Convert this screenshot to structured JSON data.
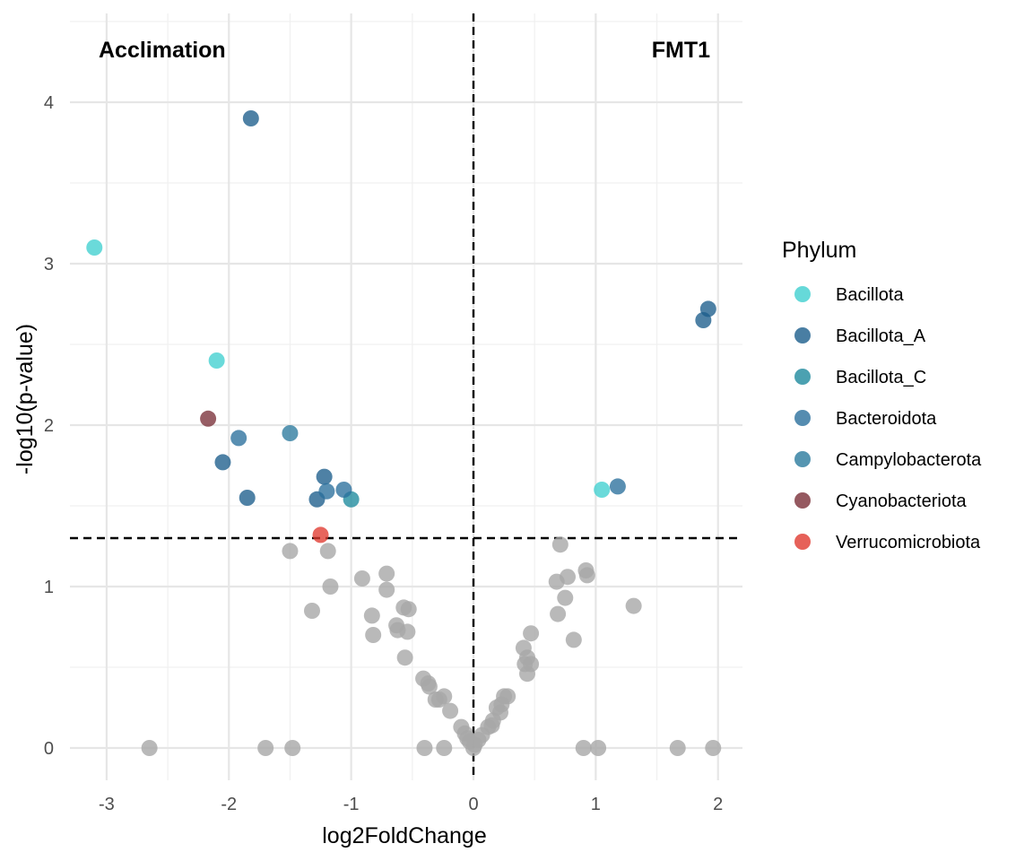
{
  "chart_data": {
    "type": "scatter",
    "xlabel": "log2FoldChange",
    "ylabel": "-log10(p-value)",
    "xlim": [
      -3.3,
      2.2
    ],
    "ylim": [
      -0.2,
      4.55
    ],
    "x_ticks": [
      -3,
      -2,
      -1,
      0,
      1,
      2
    ],
    "y_ticks": [
      0,
      1,
      2,
      3,
      4
    ],
    "grid": true,
    "reference_lines": {
      "vertical_x": 0,
      "horizontal_y": 1.3
    },
    "annotations": [
      {
        "text": "Acclimation",
        "position": "top-left"
      },
      {
        "text": "FMT1",
        "position": "top-right"
      }
    ],
    "legend": {
      "title": "Phylum",
      "placement": "right",
      "entries": [
        {
          "name": "Bacillota",
          "color": "#40D0D0"
        },
        {
          "name": "Bacillota_A",
          "color": "#1C5E8C"
        },
        {
          "name": "Bacillota_C",
          "color": "#1E8A9E"
        },
        {
          "name": "Bacteroidota",
          "color": "#2A6F9C"
        },
        {
          "name": "Campylobacterota",
          "color": "#2B7A9E"
        },
        {
          "name": "Cyanobacteriota",
          "color": "#7A3038"
        },
        {
          "name": "Verrucomicrobiota",
          "color": "#E03A30"
        }
      ]
    },
    "non_significant_color": "#A8A8A8",
    "series": [
      {
        "name": "Bacillota",
        "points": [
          [
            -3.1,
            3.1
          ],
          [
            -2.1,
            2.4
          ],
          [
            1.05,
            1.6
          ]
        ]
      },
      {
        "name": "Bacillota_A",
        "points": [
          [
            -1.82,
            3.9
          ],
          [
            -2.05,
            1.77
          ],
          [
            -1.85,
            1.55
          ],
          [
            -1.22,
            1.68
          ],
          [
            -1.28,
            1.54
          ],
          [
            1.88,
            2.65
          ],
          [
            1.92,
            2.72
          ]
        ]
      },
      {
        "name": "Bacillota_C",
        "points": [
          [
            -1.0,
            1.54
          ]
        ]
      },
      {
        "name": "Bacteroidota",
        "points": [
          [
            -1.92,
            1.92
          ],
          [
            -1.2,
            1.59
          ],
          [
            -1.06,
            1.6
          ],
          [
            1.18,
            1.62
          ]
        ]
      },
      {
        "name": "Campylobacterota",
        "points": [
          [
            -1.5,
            1.95
          ]
        ]
      },
      {
        "name": "Cyanobacteriota",
        "points": [
          [
            -2.17,
            2.04
          ]
        ]
      },
      {
        "name": "Verrucomicrobiota",
        "points": [
          [
            -1.25,
            1.32
          ]
        ]
      },
      {
        "name": "",
        "points": [
          [
            -2.65,
            0
          ],
          [
            -1.7,
            0
          ],
          [
            -1.48,
            0
          ],
          [
            -0.4,
            0
          ],
          [
            -0.24,
            0
          ],
          [
            0.0,
            0
          ],
          [
            0.9,
            0
          ],
          [
            1.02,
            0
          ],
          [
            1.67,
            0
          ],
          [
            1.96,
            0
          ],
          [
            -1.5,
            1.22
          ],
          [
            -1.19,
            1.22
          ],
          [
            -1.17,
            1.0
          ],
          [
            -1.32,
            0.85
          ],
          [
            -0.91,
            1.05
          ],
          [
            -0.71,
            1.08
          ],
          [
            -0.71,
            0.98
          ],
          [
            -0.83,
            0.82
          ],
          [
            -0.82,
            0.7
          ],
          [
            -0.57,
            0.87
          ],
          [
            -0.53,
            0.86
          ],
          [
            -0.63,
            0.76
          ],
          [
            -0.62,
            0.73
          ],
          [
            -0.54,
            0.72
          ],
          [
            -0.56,
            0.56
          ],
          [
            -0.41,
            0.43
          ],
          [
            -0.37,
            0.4
          ],
          [
            -0.36,
            0.38
          ],
          [
            -0.31,
            0.3
          ],
          [
            -0.28,
            0.3
          ],
          [
            -0.24,
            0.32
          ],
          [
            -0.19,
            0.23
          ],
          [
            -0.1,
            0.13
          ],
          [
            -0.07,
            0.09
          ],
          [
            -0.05,
            0.06
          ],
          [
            -0.03,
            0.04
          ],
          [
            0.01,
            0.02
          ],
          [
            0.04,
            0.05
          ],
          [
            0.07,
            0.08
          ],
          [
            0.12,
            0.13
          ],
          [
            0.16,
            0.17
          ],
          [
            0.15,
            0.14
          ],
          [
            0.19,
            0.25
          ],
          [
            0.22,
            0.22
          ],
          [
            0.23,
            0.27
          ],
          [
            0.25,
            0.32
          ],
          [
            0.28,
            0.32
          ],
          [
            0.71,
            1.26
          ],
          [
            0.68,
            1.03
          ],
          [
            0.77,
            1.06
          ],
          [
            0.92,
            1.1
          ],
          [
            0.93,
            1.07
          ],
          [
            0.75,
            0.93
          ],
          [
            0.69,
            0.83
          ],
          [
            0.82,
            0.67
          ],
          [
            1.31,
            0.88
          ],
          [
            0.41,
            0.62
          ],
          [
            0.47,
            0.71
          ],
          [
            0.44,
            0.56
          ],
          [
            0.42,
            0.52
          ],
          [
            0.47,
            0.52
          ],
          [
            0.44,
            0.46
          ]
        ]
      }
    ]
  }
}
